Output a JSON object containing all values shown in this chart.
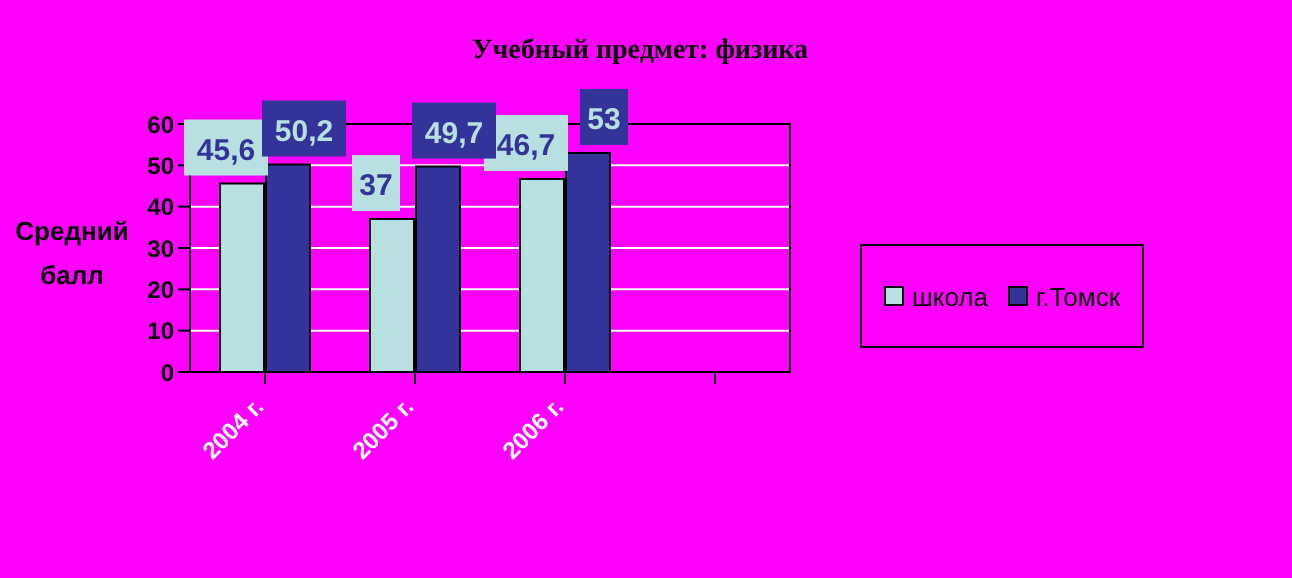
{
  "chart_data": {
    "type": "bar",
    "title": "Учебный предмет: физика",
    "ylabel": "Средний балл",
    "categories": [
      "2004 г.",
      "2005 г.",
      "2006 г.",
      null
    ],
    "series": [
      {
        "name": "школа",
        "color": "#b8e0e0",
        "values": [
          45.6,
          37,
          46.7,
          null
        ],
        "value_labels": [
          "45,6",
          "37",
          "46,7",
          null
        ]
      },
      {
        "name": "г.Томск",
        "color": "#333399",
        "values": [
          50.2,
          49.7,
          53,
          null
        ],
        "value_labels": [
          "50,2",
          "49,7",
          "53",
          null
        ]
      }
    ],
    "ylim": [
      0,
      60
    ],
    "yticks": [
      0,
      10,
      20,
      30,
      40,
      50,
      60
    ],
    "grid": "y",
    "legend": "right"
  }
}
